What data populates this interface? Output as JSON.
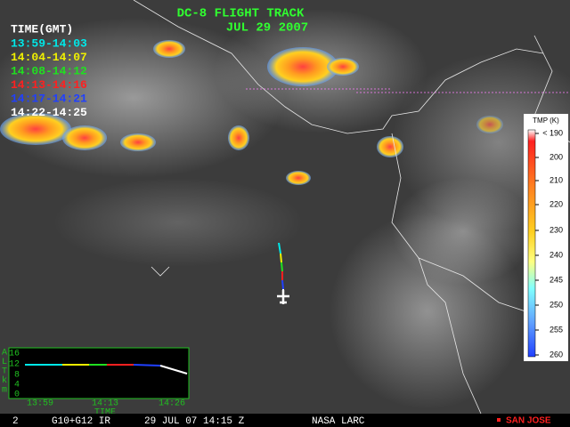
{
  "header": {
    "title": "DC-8 FLIGHT TRACK",
    "date": "JUL 29 2007"
  },
  "legend": {
    "title": "TIME(GMT)",
    "entries": [
      {
        "label": "13:59-14:03",
        "color": "#00e8e8"
      },
      {
        "label": "14:04-14:07",
        "color": "#f0f000"
      },
      {
        "label": "14:08-14:12",
        "color": "#20e020"
      },
      {
        "label": "14:13-14:16",
        "color": "#ff2020"
      },
      {
        "label": "14:17-14:21",
        "color": "#2040ff"
      },
      {
        "label": "14:22-14:25",
        "color": "#ffffff"
      }
    ]
  },
  "colorbar": {
    "title": "TMP (K)",
    "labels": [
      "< 190",
      "200",
      "210",
      "220",
      "230",
      "240",
      "245",
      "250",
      "255",
      "260"
    ]
  },
  "altitude_plot": {
    "y_label": [
      "A",
      "L",
      "T",
      "k",
      "m"
    ],
    "y_ticks": [
      "16",
      "12",
      "8",
      "4",
      "0"
    ],
    "x_ticks": [
      "13:59",
      "14:13",
      "14:26"
    ],
    "x_label": "TIME"
  },
  "footer": {
    "frame": "2",
    "satellite": "G10+G12 IR",
    "timestamp": "29 JUL 07 14:15 Z",
    "source": "NASA LARC",
    "station": "SAN JOSE"
  }
}
